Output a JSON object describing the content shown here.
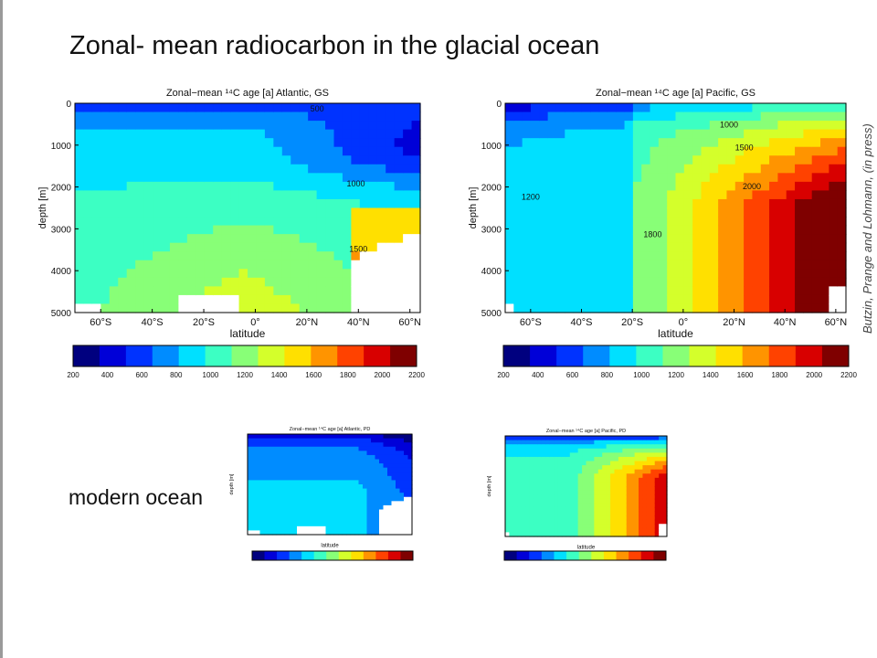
{
  "slide": {
    "title": "Zonal- mean radiocarbon in the glacial ocean",
    "modern_label": "modern ocean",
    "citation": "Butzin, Prange and Lohmann, (in press)"
  },
  "colors": {
    "scale": [
      "#00007f",
      "#0000d8",
      "#0033ff",
      "#008cff",
      "#00e0ff",
      "#3cffc3",
      "#88ff77",
      "#d4ff2b",
      "#ffe000",
      "#ff9400",
      "#ff4200",
      "#d80000",
      "#7f0000"
    ],
    "frame": "#000000"
  },
  "chart_data": [
    {
      "type": "heatmap",
      "title": "Zonal−mean ¹⁴C age [a] Atlantic, GS",
      "xlabel": "latitude",
      "ylabel": "depth [m]",
      "x_ticks": [
        "60°S",
        "40°S",
        "20°S",
        "0°",
        "20°N",
        "40°N",
        "60°N"
      ],
      "y_ticks": [
        "0",
        "1000",
        "2000",
        "3000",
        "4000",
        "5000"
      ],
      "x_range": [
        -70,
        64
      ],
      "y_range": [
        0,
        5000
      ],
      "contour_labels": [
        {
          "text": "500",
          "lat": 24,
          "depth": 200
        },
        {
          "text": "1000",
          "lat": 39,
          "depth": 1990
        },
        {
          "text": "1500",
          "lat": 40,
          "depth": 3550
        }
      ],
      "colorbar": {
        "min": 200,
        "max": 2200,
        "ticks": [
          "200",
          "400",
          "600",
          "800",
          "1000",
          "1200",
          "1400",
          "1600",
          "1800",
          "2000",
          "2200"
        ]
      }
    },
    {
      "type": "heatmap",
      "title": "Zonal−mean ¹⁴C age [a] Pacific, GS",
      "xlabel": "latitude",
      "ylabel": "depth [m]",
      "x_ticks": [
        "60°S",
        "40°S",
        "20°S",
        "0°",
        "20°N",
        "40°N",
        "60°N"
      ],
      "y_ticks": [
        "0",
        "1000",
        "2000",
        "3000",
        "4000",
        "5000"
      ],
      "x_range": [
        -70,
        64
      ],
      "y_range": [
        0,
        5000
      ],
      "contour_labels": [
        {
          "text": "1000",
          "lat": 18,
          "depth": 580
        },
        {
          "text": "1500",
          "lat": 24,
          "depth": 1120
        },
        {
          "text": "2000",
          "lat": 27,
          "depth": 2050
        },
        {
          "text": "1200",
          "lat": -60,
          "depth": 2300
        },
        {
          "text": "1800",
          "lat": -12,
          "depth": 3200
        }
      ],
      "colorbar": {
        "min": 200,
        "max": 2200,
        "ticks": [
          "200",
          "400",
          "600",
          "800",
          "1000",
          "1200",
          "1400",
          "1600",
          "1800",
          "2000",
          "2200"
        ]
      }
    },
    {
      "type": "heatmap",
      "title": "Zonal−mean ¹⁴C age [a] Atlantic, PD",
      "xlabel": "latitude",
      "ylabel": "depth [m]",
      "x_range": [
        -70,
        64
      ],
      "y_range": [
        0,
        5000
      ],
      "colorbar": {
        "min": 200,
        "max": 2200
      }
    },
    {
      "type": "heatmap",
      "title": "Zonal−mean ¹⁴C age [a] Pacific, PD",
      "xlabel": "latitude",
      "ylabel": "depth [m]",
      "x_range": [
        -70,
        64
      ],
      "y_range": [
        0,
        5000
      ],
      "colorbar": {
        "min": 200,
        "max": 2200
      }
    }
  ]
}
